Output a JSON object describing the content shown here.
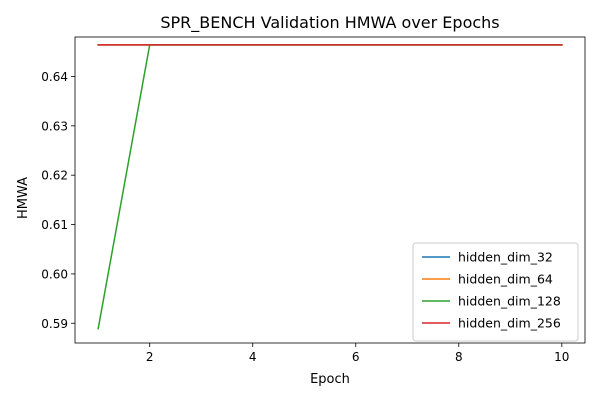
{
  "chart_data": {
    "type": "line",
    "title": "SPR_BENCH Validation HMWA over Epochs",
    "xlabel": "Epoch",
    "ylabel": "HMWA",
    "xlim": [
      0.55,
      10.45
    ],
    "ylim": [
      0.586,
      0.648
    ],
    "xticks": [
      2,
      4,
      6,
      8,
      10
    ],
    "yticks": [
      0.59,
      0.6,
      0.61,
      0.62,
      0.63,
      0.64
    ],
    "ytick_labels": [
      "0.59",
      "0.60",
      "0.61",
      "0.62",
      "0.63",
      "0.64"
    ],
    "grid": false,
    "legend_position": "lower-right",
    "x": [
      1,
      2,
      3,
      4,
      5,
      6,
      7,
      8,
      9,
      10
    ],
    "series": [
      {
        "name": "hidden_dim_32",
        "color": "#1f77b4",
        "values": [
          0.6464,
          0.6464,
          0.6464,
          0.6464,
          0.6464,
          0.6464,
          0.6464,
          0.6464,
          0.6464,
          0.6464
        ]
      },
      {
        "name": "hidden_dim_64",
        "color": "#ff7f0e",
        "values": [
          0.6464,
          0.6464,
          0.6464,
          0.6464,
          0.6464,
          0.6464,
          0.6464,
          0.6464,
          0.6464,
          0.6464
        ]
      },
      {
        "name": "hidden_dim_128",
        "color": "#2ca02c",
        "values": [
          0.5889,
          0.6464,
          0.6464,
          0.6464,
          0.6464,
          0.6464,
          0.6464,
          0.6464,
          0.6464,
          0.6464
        ]
      },
      {
        "name": "hidden_dim_256",
        "color": "#d62728",
        "values": [
          0.6464,
          0.6464,
          0.6464,
          0.6464,
          0.6464,
          0.6464,
          0.6464,
          0.6464,
          0.6464,
          0.6464
        ]
      }
    ]
  }
}
